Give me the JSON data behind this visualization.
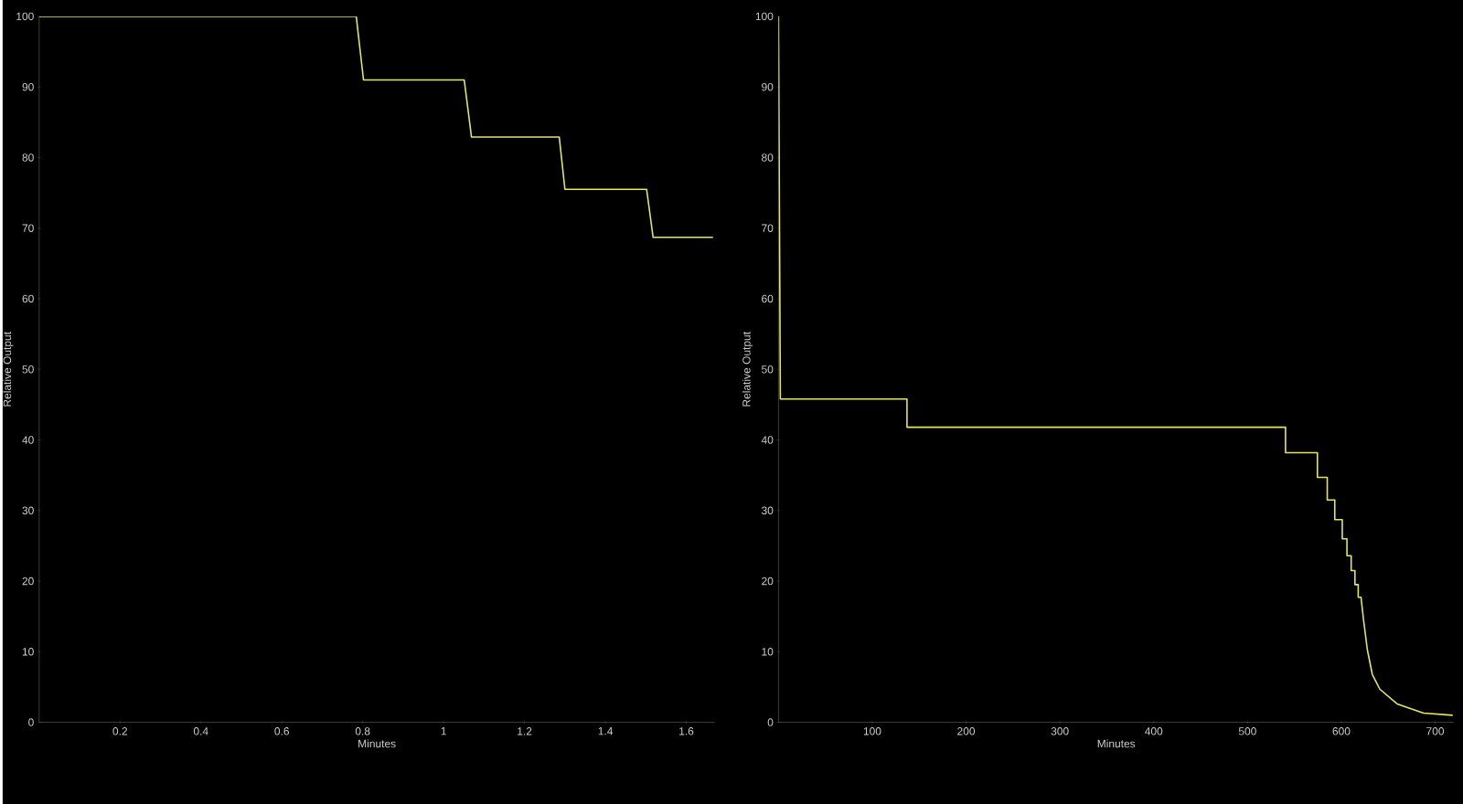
{
  "chart_data": [
    {
      "type": "line",
      "xlabel": "Minutes",
      "ylabel": "Relative Output",
      "xlim": [
        0,
        1.67
      ],
      "ylim": [
        0,
        100
      ],
      "xticks": [
        0.2,
        0.4,
        0.6,
        0.8,
        1,
        1.2,
        1.4,
        1.6
      ],
      "yticks": [
        0,
        10,
        20,
        30,
        40,
        50,
        60,
        70,
        80,
        90,
        100
      ],
      "x": [
        0,
        0.784,
        0.802,
        1.051,
        1.069,
        1.286,
        1.3,
        1.502,
        1.518,
        1.666
      ],
      "series": [
        {
          "color": "#e6e65a",
          "values": [
            100,
            100,
            91,
            91,
            82.9,
            82.9,
            75.5,
            75.5,
            68.7,
            68.7
          ]
        }
      ]
    },
    {
      "type": "line",
      "xlabel": "Minutes",
      "ylabel": "Relative Output",
      "xlim": [
        0,
        720
      ],
      "ylim": [
        0,
        100
      ],
      "xticks": [
        100,
        200,
        300,
        400,
        500,
        600,
        700
      ],
      "yticks": [
        0,
        10,
        20,
        30,
        40,
        50,
        60,
        70,
        80,
        90,
        100
      ],
      "x": [
        0,
        2,
        137,
        137,
        540.5,
        540.5,
        574.5,
        574.5,
        585,
        585,
        593,
        593,
        601,
        601,
        606,
        606,
        610.5,
        610.5,
        614.5,
        614.5,
        618,
        618,
        621,
        623.6,
        627.7,
        633,
        641,
        659.5,
        687.6,
        718.7
      ],
      "series": [
        {
          "color": "#e6e65a",
          "values": [
            100,
            45.8,
            45.8,
            41.8,
            41.8,
            38.2,
            38.2,
            34.7,
            34.7,
            31.5,
            31.5,
            28.7,
            28.7,
            26.0,
            26.0,
            23.6,
            23.6,
            21.5,
            21.5,
            19.5,
            19.5,
            17.7,
            17.7,
            14.6,
            10.3,
            6.8,
            4.7,
            2.6,
            1.3,
            1.0
          ]
        }
      ]
    }
  ]
}
